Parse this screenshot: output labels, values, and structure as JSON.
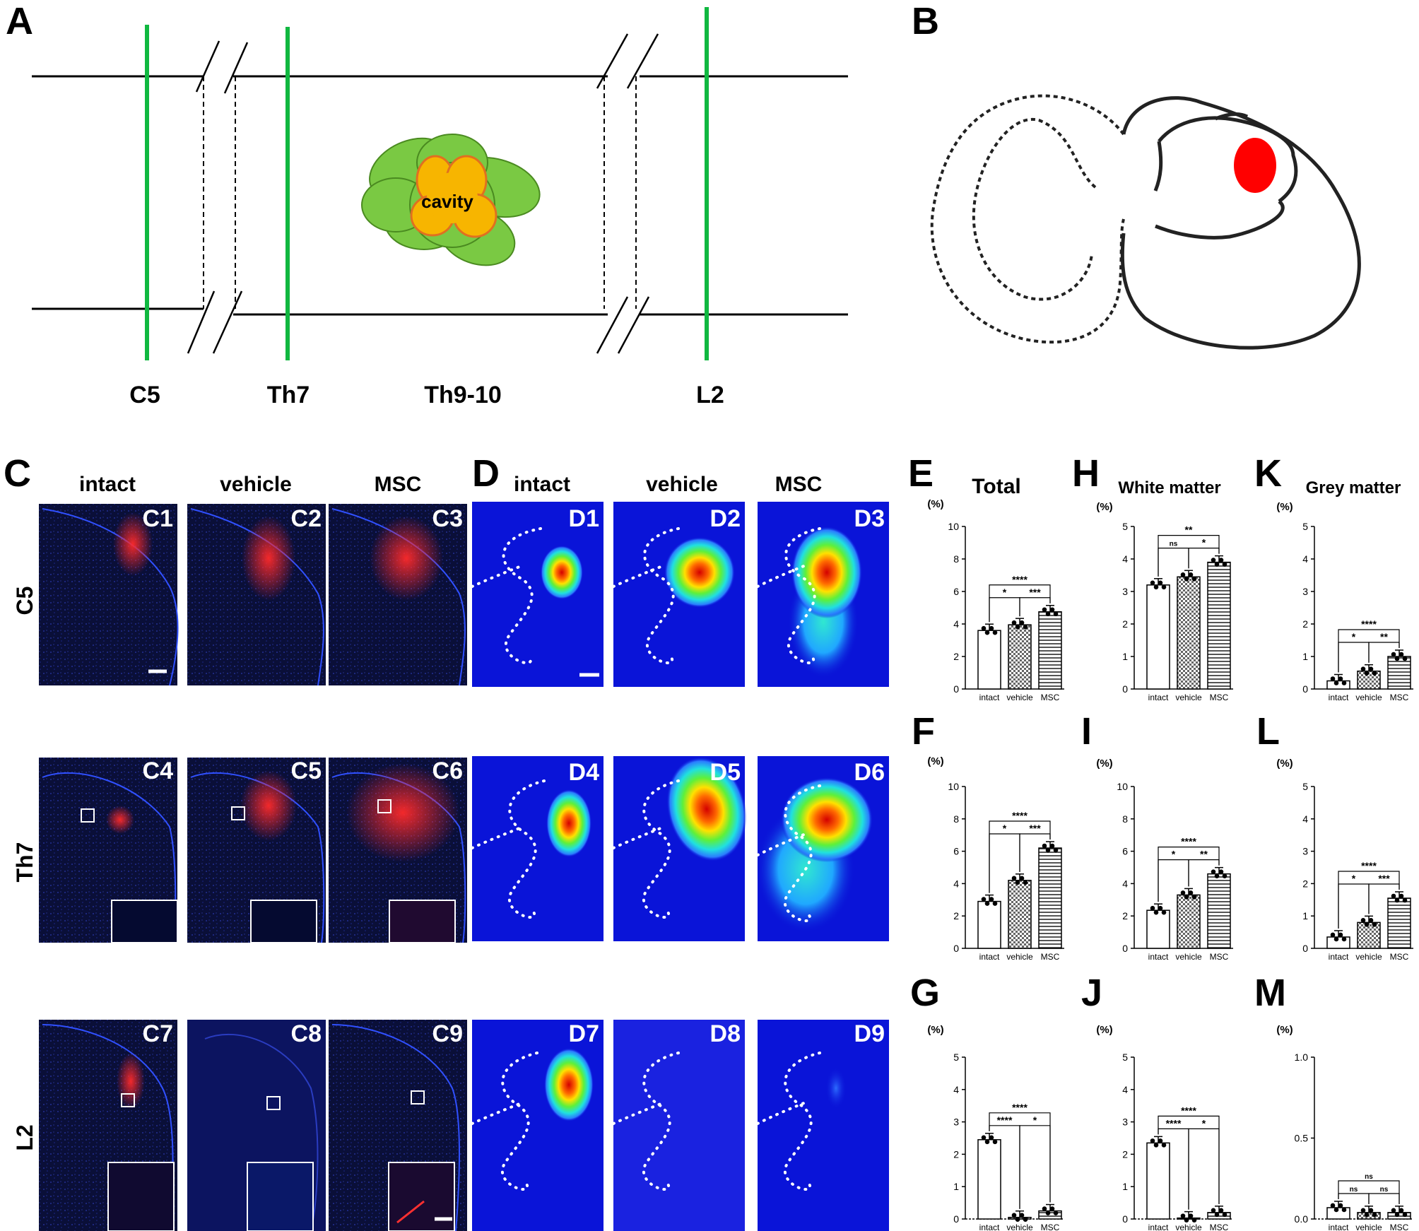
{
  "panel_letters": {
    "A": "A",
    "B": "B",
    "C": "C",
    "D": "D",
    "E": "E",
    "F": "F",
    "G": "G",
    "H": "H",
    "I": "I",
    "J": "J",
    "K": "K",
    "L": "L",
    "M": "M"
  },
  "panel_a": {
    "cavity_label": "cavity",
    "segments": [
      "C5",
      "Th7",
      "Th9-10",
      "L2"
    ]
  },
  "micrograph_columns": [
    "intact",
    "vehicle",
    "MSC"
  ],
  "heatmap_columns": [
    "intact",
    "vehicle",
    "MSC"
  ],
  "row_labels": [
    "C5",
    "Th7",
    "L2"
  ],
  "micrograph_tiles": [
    "C1",
    "C2",
    "C3",
    "C4",
    "C5",
    "C6",
    "C7",
    "C8",
    "C9"
  ],
  "heatmap_tiles": [
    "D1",
    "D2",
    "D3",
    "D4",
    "D5",
    "D6",
    "D7",
    "D8",
    "D9"
  ],
  "colors": {
    "stain_blue": "#0c1460",
    "stain_red": "#ff2020",
    "heat_background": "#0a14d8",
    "tract_green": "#10b840",
    "cavity_orange": "#f7b500",
    "lesion_green": "#7ac943",
    "region_red": "#ff0000"
  },
  "chart_data": [
    {
      "panel": "E",
      "type": "bar",
      "title": "Total",
      "unit": "(%)",
      "categories": [
        "intact",
        "vehicle",
        "MSC"
      ],
      "values": [
        3.6,
        3.95,
        4.75
      ],
      "ylim": [
        0,
        10
      ],
      "yticks": [
        "0",
        "2",
        "4",
        "6",
        "8",
        "10"
      ],
      "significance": [
        {
          "pair": [
            0,
            1
          ],
          "label": "*"
        },
        {
          "pair": [
            1,
            2
          ],
          "label": "***"
        },
        {
          "pair": [
            0,
            2
          ],
          "label": "****"
        }
      ]
    },
    {
      "panel": "F",
      "type": "bar",
      "title": "",
      "unit": "(%)",
      "categories": [
        "intact",
        "vehicle",
        "MSC"
      ],
      "values": [
        2.9,
        4.2,
        6.2
      ],
      "ylim": [
        0,
        10
      ],
      "yticks": [
        "0",
        "2",
        "4",
        "6",
        "8",
        "10"
      ],
      "significance": [
        {
          "pair": [
            0,
            1
          ],
          "label": "*"
        },
        {
          "pair": [
            1,
            2
          ],
          "label": "***"
        },
        {
          "pair": [
            0,
            2
          ],
          "label": "****"
        }
      ]
    },
    {
      "panel": "G",
      "type": "bar",
      "title": "",
      "unit": "(%)",
      "categories": [
        "intact",
        "vehicle",
        "MSC"
      ],
      "values": [
        2.45,
        0.05,
        0.25
      ],
      "ylim": [
        0,
        5
      ],
      "yticks": [
        "0",
        "1",
        "2",
        "3",
        "4",
        "5"
      ],
      "significance": [
        {
          "pair": [
            0,
            1
          ],
          "label": "****"
        },
        {
          "pair": [
            1,
            2
          ],
          "label": "*"
        },
        {
          "pair": [
            0,
            2
          ],
          "label": "****"
        }
      ]
    },
    {
      "panel": "H",
      "type": "bar",
      "title": "White matter",
      "unit": "(%)",
      "categories": [
        "intact",
        "vehicle",
        "MSC"
      ],
      "values": [
        3.2,
        3.45,
        3.9
      ],
      "ylim": [
        0,
        5
      ],
      "yticks": [
        "0",
        "1",
        "2",
        "3",
        "4",
        "5"
      ],
      "significance": [
        {
          "pair": [
            0,
            1
          ],
          "label": "ns"
        },
        {
          "pair": [
            1,
            2
          ],
          "label": "*"
        },
        {
          "pair": [
            0,
            2
          ],
          "label": "**"
        }
      ]
    },
    {
      "panel": "I",
      "type": "bar",
      "title": "",
      "unit": "(%)",
      "categories": [
        "intact",
        "vehicle",
        "MSC"
      ],
      "values": [
        2.35,
        3.3,
        4.6
      ],
      "ylim": [
        0,
        10
      ],
      "yticks": [
        "0",
        "2",
        "4",
        "6",
        "8",
        "10"
      ],
      "significance": [
        {
          "pair": [
            0,
            1
          ],
          "label": "*"
        },
        {
          "pair": [
            1,
            2
          ],
          "label": "**"
        },
        {
          "pair": [
            0,
            2
          ],
          "label": "****"
        }
      ]
    },
    {
      "panel": "J",
      "type": "bar",
      "title": "",
      "unit": "(%)",
      "categories": [
        "intact",
        "vehicle",
        "MSC"
      ],
      "values": [
        2.35,
        0.03,
        0.2
      ],
      "ylim": [
        0,
        5
      ],
      "yticks": [
        "0",
        "1",
        "2",
        "3",
        "4",
        "5"
      ],
      "significance": [
        {
          "pair": [
            0,
            1
          ],
          "label": "****"
        },
        {
          "pair": [
            1,
            2
          ],
          "label": "*"
        },
        {
          "pair": [
            0,
            2
          ],
          "label": "****"
        }
      ]
    },
    {
      "panel": "K",
      "type": "bar",
      "title": "Grey matter",
      "unit": "(%)",
      "categories": [
        "intact",
        "vehicle",
        "MSC"
      ],
      "values": [
        0.25,
        0.55,
        1.0
      ],
      "ylim": [
        0,
        5
      ],
      "yticks": [
        "0",
        "1",
        "2",
        "3",
        "4",
        "5"
      ],
      "significance": [
        {
          "pair": [
            0,
            1
          ],
          "label": "*"
        },
        {
          "pair": [
            1,
            2
          ],
          "label": "**"
        },
        {
          "pair": [
            0,
            2
          ],
          "label": "****"
        }
      ]
    },
    {
      "panel": "L",
      "type": "bar",
      "title": "",
      "unit": "(%)",
      "categories": [
        "intact",
        "vehicle",
        "MSC"
      ],
      "values": [
        0.35,
        0.8,
        1.55
      ],
      "ylim": [
        0,
        5
      ],
      "yticks": [
        "0",
        "1",
        "2",
        "3",
        "4",
        "5"
      ],
      "significance": [
        {
          "pair": [
            0,
            1
          ],
          "label": "*"
        },
        {
          "pair": [
            1,
            2
          ],
          "label": "***"
        },
        {
          "pair": [
            0,
            2
          ],
          "label": "****"
        }
      ]
    },
    {
      "panel": "M",
      "type": "bar",
      "title": "",
      "unit": "(%)",
      "categories": [
        "intact",
        "vehicle",
        "MSC"
      ],
      "values": [
        0.07,
        0.04,
        0.04
      ],
      "ylim": [
        0,
        1.0
      ],
      "yticks": [
        "0.0",
        "0.5",
        "1.0"
      ],
      "significance": [
        {
          "pair": [
            0,
            1
          ],
          "label": "ns"
        },
        {
          "pair": [
            1,
            2
          ],
          "label": "ns"
        },
        {
          "pair": [
            0,
            2
          ],
          "label": "ns"
        }
      ]
    }
  ]
}
